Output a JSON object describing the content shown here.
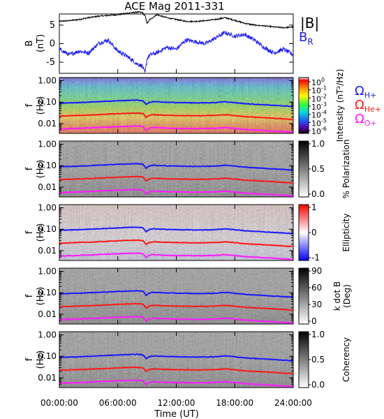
{
  "title": "ACE Mag 2011-331",
  "time_axis": {
    "label": "Time (UT)",
    "ticks": [
      "00:00:00",
      "06:00:00",
      "12:00:00",
      "18:00:00",
      "24:00:00"
    ],
    "range_hours": [
      0,
      24
    ]
  },
  "legend_bfield": {
    "total": "|B|",
    "radial_main": "B",
    "radial_sub": "R",
    "total_color": "#000000",
    "radial_color": "#1a1aff"
  },
  "legend_gyro": [
    {
      "symbol": "Ω",
      "sub": "H+",
      "color": "#1a1aff"
    },
    {
      "symbol": "Ω",
      "sub": "He+",
      "color": "#ff1a1a"
    },
    {
      "symbol": "Ω",
      "sub": "O+",
      "color": "#ff1aff"
    }
  ],
  "freq_ticks": [
    "1.00",
    "0.10",
    "0.01"
  ],
  "freq_ylabel_top": "f",
  "freq_ylabel_bottom": "(Hz)",
  "panels": [
    {
      "id": "intensity",
      "colorbar_label": "Intensity (nT²/Hz)",
      "colorbar_ticks": [
        {
          "base": "10",
          "exp": "0"
        },
        {
          "base": "10",
          "exp": "-1"
        },
        {
          "base": "10",
          "exp": "-2"
        },
        {
          "base": "10",
          "exp": "-3"
        },
        {
          "base": "10",
          "exp": "-4"
        },
        {
          "base": "10",
          "exp": "-5"
        },
        {
          "base": "10",
          "exp": "-6"
        }
      ]
    },
    {
      "id": "polarization",
      "colorbar_label": "% Polarization",
      "colorbar_ticks": [
        "1.0",
        "0.5",
        "0.0"
      ]
    },
    {
      "id": "ellipticity",
      "colorbar_label": "Ellipticity",
      "colorbar_ticks": [
        "1",
        "0",
        "-1"
      ]
    },
    {
      "id": "kdotb",
      "colorbar_label_top": "k dot B",
      "colorbar_label_bottom": "(Deg)",
      "colorbar_ticks": [
        "90",
        "60",
        "30",
        "0"
      ]
    },
    {
      "id": "coherency",
      "colorbar_label": "Coherency",
      "colorbar_ticks": [
        "1.0",
        "0.5",
        "0.0"
      ]
    }
  ],
  "chart_data": [
    {
      "type": "line",
      "panel": "B-field",
      "ylabel_top": "B",
      "ylabel_bottom": "(nT)",
      "ylim": [
        -8,
        8
      ],
      "yticks": [
        "5",
        "0",
        "-5"
      ],
      "x_hours": [
        0,
        1,
        2,
        3,
        4,
        5,
        6,
        7,
        8,
        8.5,
        8.8,
        9,
        9.3,
        10,
        11,
        12,
        13,
        14,
        15,
        16,
        17,
        18,
        19,
        20,
        21,
        22,
        23,
        24
      ],
      "series": [
        {
          "name": "|B|",
          "color": "#000000",
          "values": [
            6.0,
            6.2,
            6.5,
            7.0,
            7.4,
            7.6,
            7.8,
            8.2,
            8.5,
            8.4,
            7.5,
            5.5,
            6.5,
            7.8,
            7.0,
            6.5,
            6.0,
            6.0,
            6.2,
            6.5,
            7.0,
            6.3,
            5.5,
            5.0,
            4.8,
            4.5,
            4.3,
            4.5
          ]
        },
        {
          "name": "B_R",
          "color": "#1a1aff",
          "values": [
            -1.5,
            -3.0,
            -2.0,
            -2.5,
            0.0,
            1.0,
            -2.0,
            -3.5,
            -5.5,
            -6.0,
            -8.0,
            -4.0,
            -3.0,
            -2.5,
            -1.0,
            -1.5,
            1.0,
            0.5,
            0.0,
            1.5,
            3.0,
            2.0,
            2.5,
            1.0,
            -1.0,
            -2.5,
            -1.5,
            -3.0
          ]
        }
      ]
    },
    {
      "type": "line",
      "panel": "gyrofrequencies",
      "yscale": "log",
      "ylim": [
        0.0035,
        1.4
      ],
      "x_hours": [
        0,
        2,
        4,
        6,
        8,
        8.6,
        8.9,
        9.2,
        9.6,
        11,
        14,
        16,
        17,
        19,
        21,
        24
      ],
      "series": [
        {
          "name": "Ω H+",
          "color": "#1a1aff",
          "values": [
            0.09,
            0.095,
            0.105,
            0.115,
            0.125,
            0.115,
            0.075,
            0.095,
            0.105,
            0.098,
            0.092,
            0.095,
            0.105,
            0.085,
            0.075,
            0.062
          ]
        },
        {
          "name": "Ω He+",
          "color": "#ff1a1a",
          "values": [
            0.0225,
            0.024,
            0.026,
            0.029,
            0.031,
            0.029,
            0.019,
            0.024,
            0.026,
            0.0245,
            0.023,
            0.024,
            0.026,
            0.021,
            0.019,
            0.0155
          ]
        },
        {
          "name": "Ω O+",
          "color": "#ff1aff",
          "values": [
            0.0056,
            0.006,
            0.0066,
            0.0072,
            0.0078,
            0.0072,
            0.0047,
            0.006,
            0.0066,
            0.0061,
            0.0058,
            0.006,
            0.0066,
            0.0053,
            0.0047,
            0.0039
          ]
        }
      ]
    }
  ]
}
